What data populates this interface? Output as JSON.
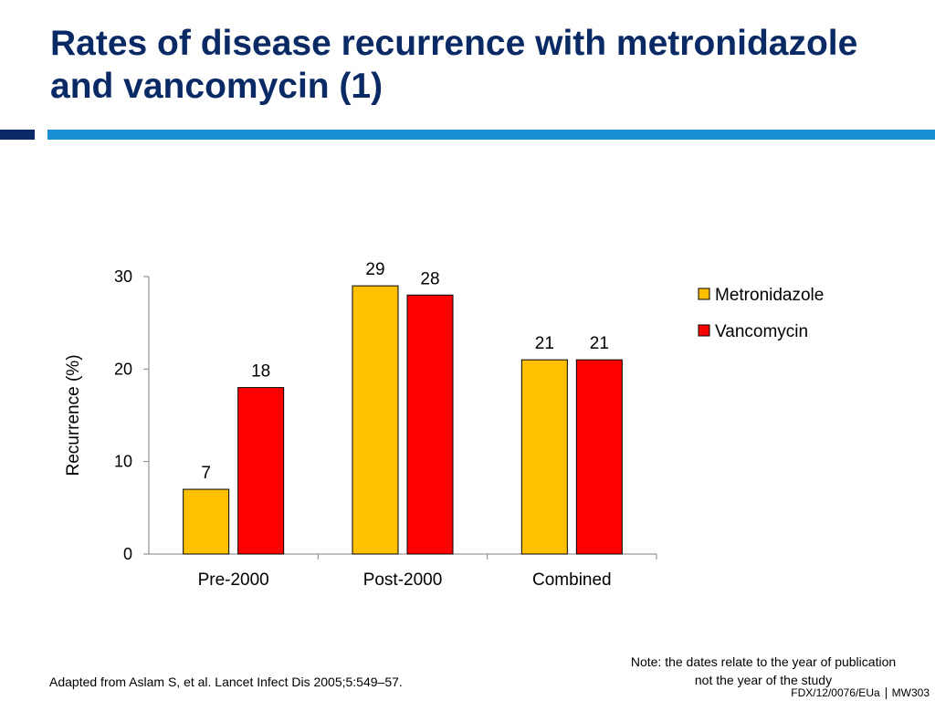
{
  "slide": {
    "title": "Rates of disease recurrence with metronidazole and vancomycin (1)",
    "source": "Adapted from Aslam S, et al. Lancet Infect Dis 2005;5:549–57.",
    "note": "Note: the dates relate to the year of publication not the year of the study",
    "footer_code": "FDX/12/0076/EUa",
    "footer_page": "MW303"
  },
  "colors": {
    "title": "#0a2a66",
    "accent_bar": "#1a8fd6",
    "metronidazole": "#ffc000",
    "vancomycin": "#ff0000"
  },
  "chart_data": {
    "type": "bar",
    "title": "",
    "xlabel": "",
    "ylabel": "Recurrence (%)",
    "categories": [
      "Pre-2000",
      "Post-2000",
      "Combined"
    ],
    "series": [
      {
        "name": "Metronidazole",
        "values": [
          7,
          29,
          21
        ]
      },
      {
        "name": "Vancomycin",
        "values": [
          18,
          28,
          21
        ]
      }
    ],
    "ylim": [
      0,
      30
    ],
    "yticks": [
      0,
      10,
      20,
      30
    ],
    "grid": false,
    "legend": "top-right"
  }
}
